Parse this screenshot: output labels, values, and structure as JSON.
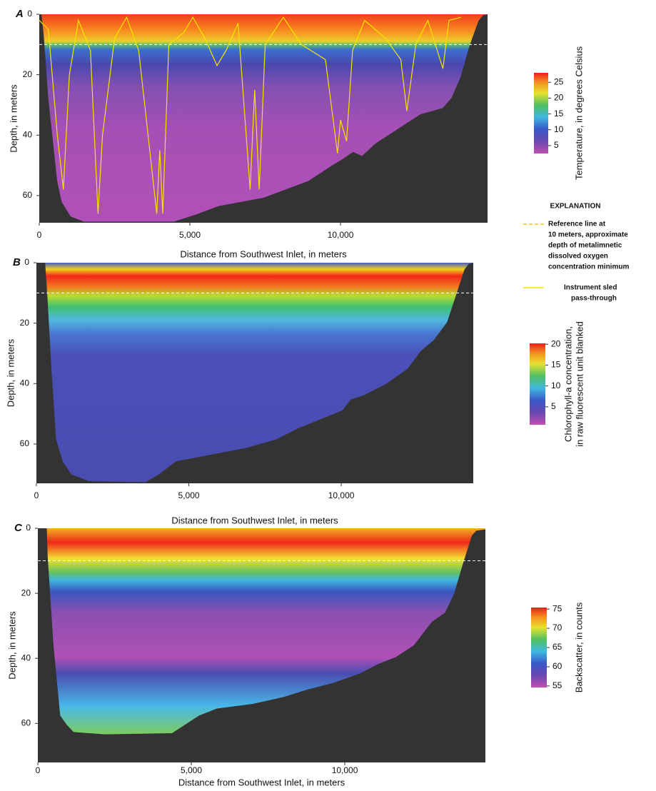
{
  "chart_data": [
    {
      "type": "heatmap",
      "panel": "A",
      "xlabel": "Distance from Southwest Inlet, in meters",
      "ylabel": "Depth, in meters",
      "xlim": [
        0,
        14880
      ],
      "ylim": [
        0,
        69
      ],
      "xticks": [
        0,
        {
          "value": 5000,
          "label": "5,000"
        },
        {
          "value": 10000,
          "label": "10,000"
        }
      ],
      "yticks": [
        0,
        20,
        40,
        60
      ],
      "reference_line": {
        "value": 10,
        "color": "#ffffff",
        "legend_color": "#f5c518",
        "label": [
          "Reference line at",
          "10 meters, approximate",
          "depth of metalimnetic",
          "dissolved oxygen",
          "concentration minimum"
        ]
      },
      "legend_title": "EXPLANATION",
      "series": [
        {
          "name": [
            "Instrument sled",
            "pass-through"
          ],
          "color": "#f2e600",
          "x": [
            0,
            300,
            600,
            800,
            1000,
            1300,
            1700,
            1950,
            2100,
            2500,
            2900,
            3300,
            3900,
            4000,
            4100,
            4300,
            4800,
            5100,
            5500,
            5900,
            6200,
            6600,
            7000,
            7150,
            7300,
            7500,
            8100,
            8700,
            9500,
            9900,
            10000,
            10200,
            10400,
            10800,
            11500,
            12000,
            12200,
            12500,
            12900,
            13400,
            13600,
            14000
          ],
          "values": [
            2,
            5,
            40,
            58,
            20,
            2,
            12,
            66,
            40,
            8,
            1,
            12,
            66,
            45,
            66,
            10,
            6,
            1,
            8,
            17,
            12,
            3,
            58,
            25,
            58,
            10,
            1,
            10,
            15,
            46,
            35,
            42,
            12,
            2,
            8,
            15,
            32,
            10,
            2,
            18,
            2,
            1
          ]
        }
      ],
      "colorbar": {
        "label": [
          "Temperature, in degrees Celsius"
        ],
        "lim": [
          2.5,
          28
        ],
        "ticks": [
          5,
          10,
          15,
          20,
          25
        ]
      }
    },
    {
      "type": "heatmap",
      "panel": "B",
      "xlabel": "Distance from Southwest Inlet, in meters",
      "ylabel": "Depth, in meters",
      "xlim": [
        0,
        14330
      ],
      "ylim": [
        0,
        73
      ],
      "xticks": [
        0,
        {
          "value": 5000,
          "label": "5,000"
        },
        {
          "value": 10000,
          "label": "10,000"
        }
      ],
      "yticks": [
        0,
        20,
        40,
        60
      ],
      "reference_line": {
        "value": 10,
        "color": "#ffffff"
      },
      "colorbar": {
        "label": [
          "Chlorophyll-a concentration,",
          "in raw fluorescent unit blanked"
        ],
        "lim": [
          0.7,
          20.2
        ],
        "ticks": [
          5,
          10,
          15,
          20
        ]
      }
    },
    {
      "type": "heatmap",
      "panel": "C",
      "xlabel": "Distance from Southwest Inlet, in meters",
      "ylabel": "Depth, in meters",
      "xlim": [
        0,
        14580
      ],
      "ylim": [
        0,
        72
      ],
      "xticks": [
        0,
        {
          "value": 5000,
          "label": "5,000"
        },
        {
          "value": 10000,
          "label": "10,000"
        }
      ],
      "yticks": [
        0,
        20,
        40,
        60
      ],
      "reference_line": {
        "value": 10,
        "color": "#ffffff"
      },
      "colorbar": {
        "label": [
          "Backscatter, in counts"
        ],
        "lim": [
          54.6,
          75.4
        ],
        "ticks": [
          55,
          60,
          65,
          70,
          75
        ]
      }
    }
  ]
}
